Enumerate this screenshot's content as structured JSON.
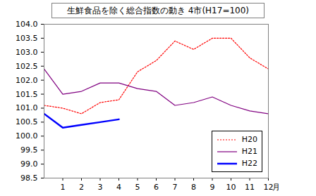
{
  "chart_data": {
    "type": "line",
    "title": "生鮮食品を除く総合指数の動き 4市(H17=100)",
    "x_label": "月",
    "x": [
      0,
      1,
      2,
      3,
      4,
      5,
      6,
      7,
      8,
      9,
      10,
      11,
      12
    ],
    "xlim": [
      0,
      12
    ],
    "xticks": [
      1,
      2,
      3,
      4,
      5,
      6,
      7,
      8,
      9,
      10,
      11,
      12
    ],
    "ylim": [
      98.5,
      104
    ],
    "yticks": [
      98.5,
      {
        "value": 99,
        "label": "99.0"
      },
      99.5,
      {
        "value": 100,
        "label": "100.0"
      },
      100.5,
      {
        "value": 101,
        "label": "101.0"
      },
      101.5,
      {
        "value": 102,
        "label": "102.0"
      },
      102.5,
      {
        "value": 103,
        "label": "103.0"
      },
      103.5,
      {
        "value": 104,
        "label": "104.0"
      }
    ],
    "grid": false,
    "legend": "bottom-right",
    "series": [
      {
        "name": "H20",
        "color": "#ff0000",
        "line_style": "dotted",
        "values": [
          101.1,
          101.0,
          100.8,
          101.2,
          101.3,
          102.3,
          102.7,
          103.4,
          103.1,
          103.5,
          103.5,
          102.8,
          102.4
        ]
      },
      {
        "name": "H21",
        "color": "#800080",
        "line_style": "solid",
        "values": [
          102.4,
          101.5,
          101.6,
          101.9,
          101.9,
          101.7,
          101.6,
          101.1,
          101.2,
          101.4,
          101.1,
          100.9,
          100.8
        ]
      },
      {
        "name": "H22",
        "color": "#0000ff",
        "line_style": "thick",
        "values": [
          100.8,
          100.3,
          100.4,
          100.5,
          100.6,
          null,
          null,
          null,
          null,
          null,
          null,
          null,
          null
        ]
      }
    ]
  }
}
